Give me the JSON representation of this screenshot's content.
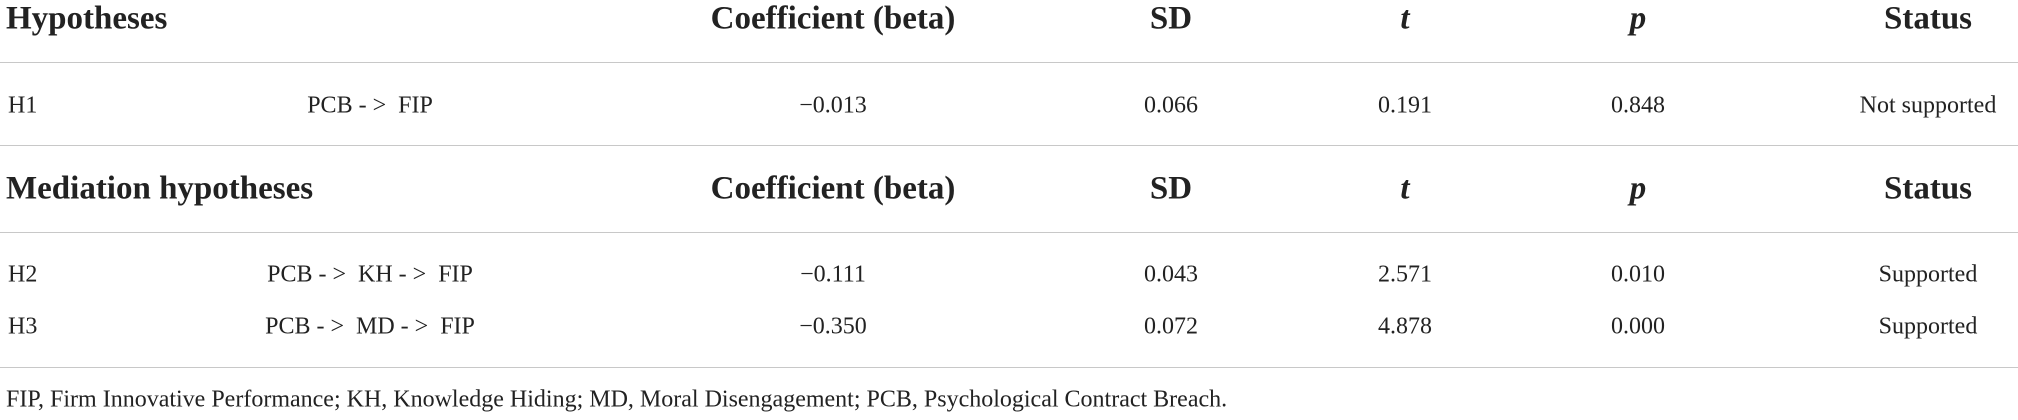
{
  "table": {
    "sections": [
      {
        "header": [
          "Hypotheses",
          "Coefficient (beta)",
          "SD",
          "t",
          "p",
          "Status"
        ],
        "rows": [
          [
            "H1",
            "PCB - >  FIP",
            "−0.013",
            "0.066",
            "0.191",
            "0.848",
            "Not supported"
          ]
        ]
      },
      {
        "header": [
          "Mediation hypotheses",
          "Coefficient (beta)",
          "SD",
          "t",
          "p",
          "Status"
        ],
        "rows": [
          [
            "H2",
            "PCB - >  KH - >  FIP",
            "−0.111",
            "0.043",
            "2.571",
            "0.010",
            "Supported"
          ],
          [
            "H3",
            "PCB - >  MD - >  FIP",
            "−0.350",
            "0.072",
            "4.878",
            "0.000",
            "Supported"
          ]
        ]
      }
    ],
    "footnote": "FIP, Firm Innovative Performance; KH, Knowledge Hiding; MD, Moral Disengagement; PCB, Psychological Contract Breach."
  }
}
